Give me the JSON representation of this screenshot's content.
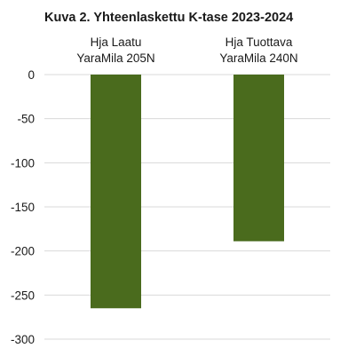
{
  "chart_data": {
    "type": "bar",
    "title": "Kuva 2. Yhteenlaskettu K-tase 2023-2024",
    "categories": [
      [
        "Hja Laatu",
        "YaraMila 205N"
      ],
      [
        "Hja Tuottava",
        "YaraMila 240N"
      ]
    ],
    "values": [
      -265,
      -189
    ],
    "ylim": [
      -300,
      0
    ],
    "yticks": [
      "0",
      "-50",
      "-100",
      "-150",
      "-200",
      "-250",
      "-300"
    ],
    "ytick_values": [
      0,
      -50,
      -100,
      -150,
      -200,
      -250,
      -300
    ],
    "grid": true,
    "legend": "none",
    "colors": {
      "bar": "#4a6b1d",
      "grid": "#d9d9d9",
      "text": "#1a1a1a"
    }
  }
}
